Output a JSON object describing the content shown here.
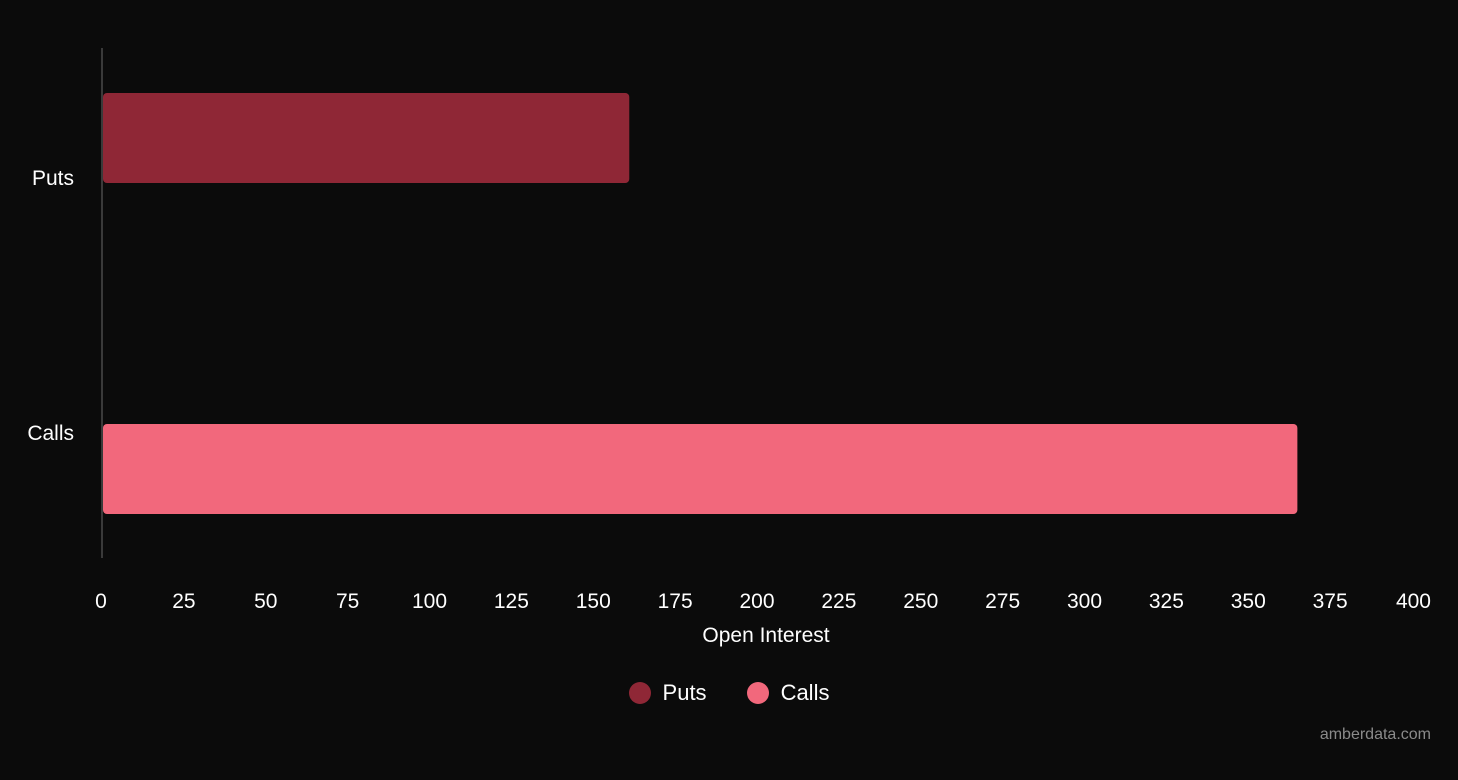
{
  "chart_data": {
    "type": "bar",
    "orientation": "horizontal",
    "categories": [
      "Puts",
      "Calls"
    ],
    "values": [
      161,
      365
    ],
    "colors": [
      "#8f2736",
      "#f2687c"
    ],
    "xlabel": "Open Interest",
    "ylabel": "",
    "xlim": [
      0,
      400
    ],
    "x_ticks": [
      "0",
      "25",
      "50",
      "75",
      "100",
      "125",
      "150",
      "175",
      "200",
      "225",
      "250",
      "275",
      "300",
      "325",
      "350",
      "375",
      "400"
    ],
    "grid": false,
    "legend_position": "bottom-center",
    "legend": [
      {
        "name": "Puts",
        "color": "#8f2736"
      },
      {
        "name": "Calls",
        "color": "#f2687c"
      }
    ]
  },
  "watermark": "amberdata.com"
}
